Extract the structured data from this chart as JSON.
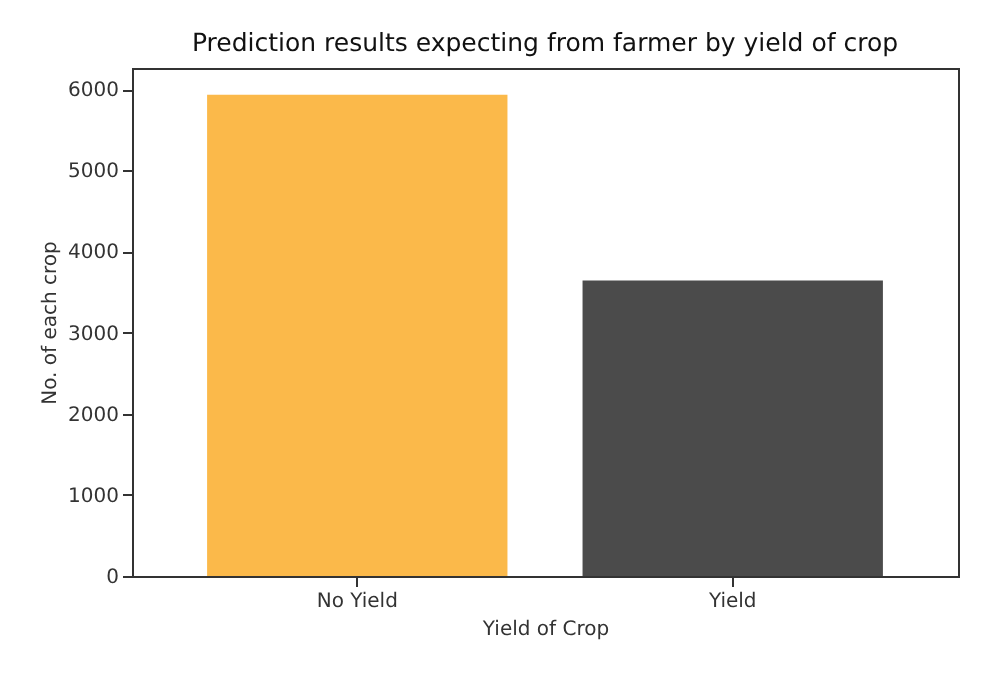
{
  "chart_data": {
    "type": "bar",
    "title": "Prediction results expecting from farmer by yield of crop",
    "xlabel": "Yield of Crop",
    "ylabel": "No. of each crop",
    "categories": [
      "No Yield",
      "Yield"
    ],
    "values": [
      5930,
      3640
    ],
    "colors": [
      "#fbb94a",
      "#4b4b4b"
    ],
    "ylim": [
      0,
      6260
    ],
    "yticks": [
      0,
      1000,
      2000,
      3000,
      4000,
      5000,
      6000
    ],
    "grid": false
  }
}
